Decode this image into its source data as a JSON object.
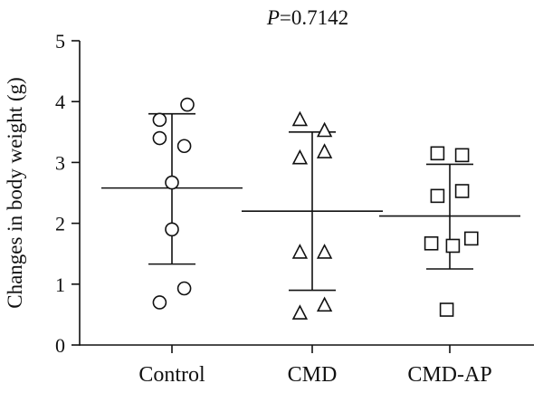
{
  "chart_data": {
    "type": "scatter",
    "title_italic": "P",
    "title_rest": "=0.7142",
    "xlabel": "",
    "ylabel": "Changes in body weight (g)",
    "ylim": [
      0,
      5
    ],
    "yticks": [
      0,
      1,
      2,
      3,
      4,
      5
    ],
    "grid": false,
    "legend": "none",
    "categories": [
      "Control",
      "CMD",
      "CMD-AP"
    ],
    "series": [
      {
        "marker": "circle",
        "mean": 2.58,
        "sd_low": 1.33,
        "sd_high": 3.8,
        "points": [
          {
            "offset": 0.25,
            "y": 3.95
          },
          {
            "offset": -0.2,
            "y": 3.7
          },
          {
            "offset": -0.2,
            "y": 3.4
          },
          {
            "offset": 0.2,
            "y": 3.27
          },
          {
            "offset": 0.0,
            "y": 2.67
          },
          {
            "offset": 0.0,
            "y": 1.9
          },
          {
            "offset": 0.2,
            "y": 0.93
          },
          {
            "offset": -0.2,
            "y": 0.7
          }
        ]
      },
      {
        "marker": "triangle",
        "mean": 2.2,
        "sd_low": 0.9,
        "sd_high": 3.5,
        "points": [
          {
            "offset": -0.2,
            "y": 3.7
          },
          {
            "offset": 0.2,
            "y": 3.52
          },
          {
            "offset": 0.2,
            "y": 3.17
          },
          {
            "offset": -0.2,
            "y": 3.07
          },
          {
            "offset": -0.2,
            "y": 1.52
          },
          {
            "offset": 0.2,
            "y": 1.52
          },
          {
            "offset": 0.2,
            "y": 0.65
          },
          {
            "offset": -0.2,
            "y": 0.52
          }
        ]
      },
      {
        "marker": "square",
        "mean": 2.12,
        "sd_low": 1.25,
        "sd_high": 2.97,
        "points": [
          {
            "offset": -0.2,
            "y": 3.15
          },
          {
            "offset": 0.2,
            "y": 3.12
          },
          {
            "offset": 0.2,
            "y": 2.53
          },
          {
            "offset": -0.2,
            "y": 2.45
          },
          {
            "offset": 0.35,
            "y": 1.75
          },
          {
            "offset": -0.3,
            "y": 1.67
          },
          {
            "offset": 0.05,
            "y": 1.63
          },
          {
            "offset": -0.05,
            "y": 0.58
          }
        ]
      }
    ]
  }
}
